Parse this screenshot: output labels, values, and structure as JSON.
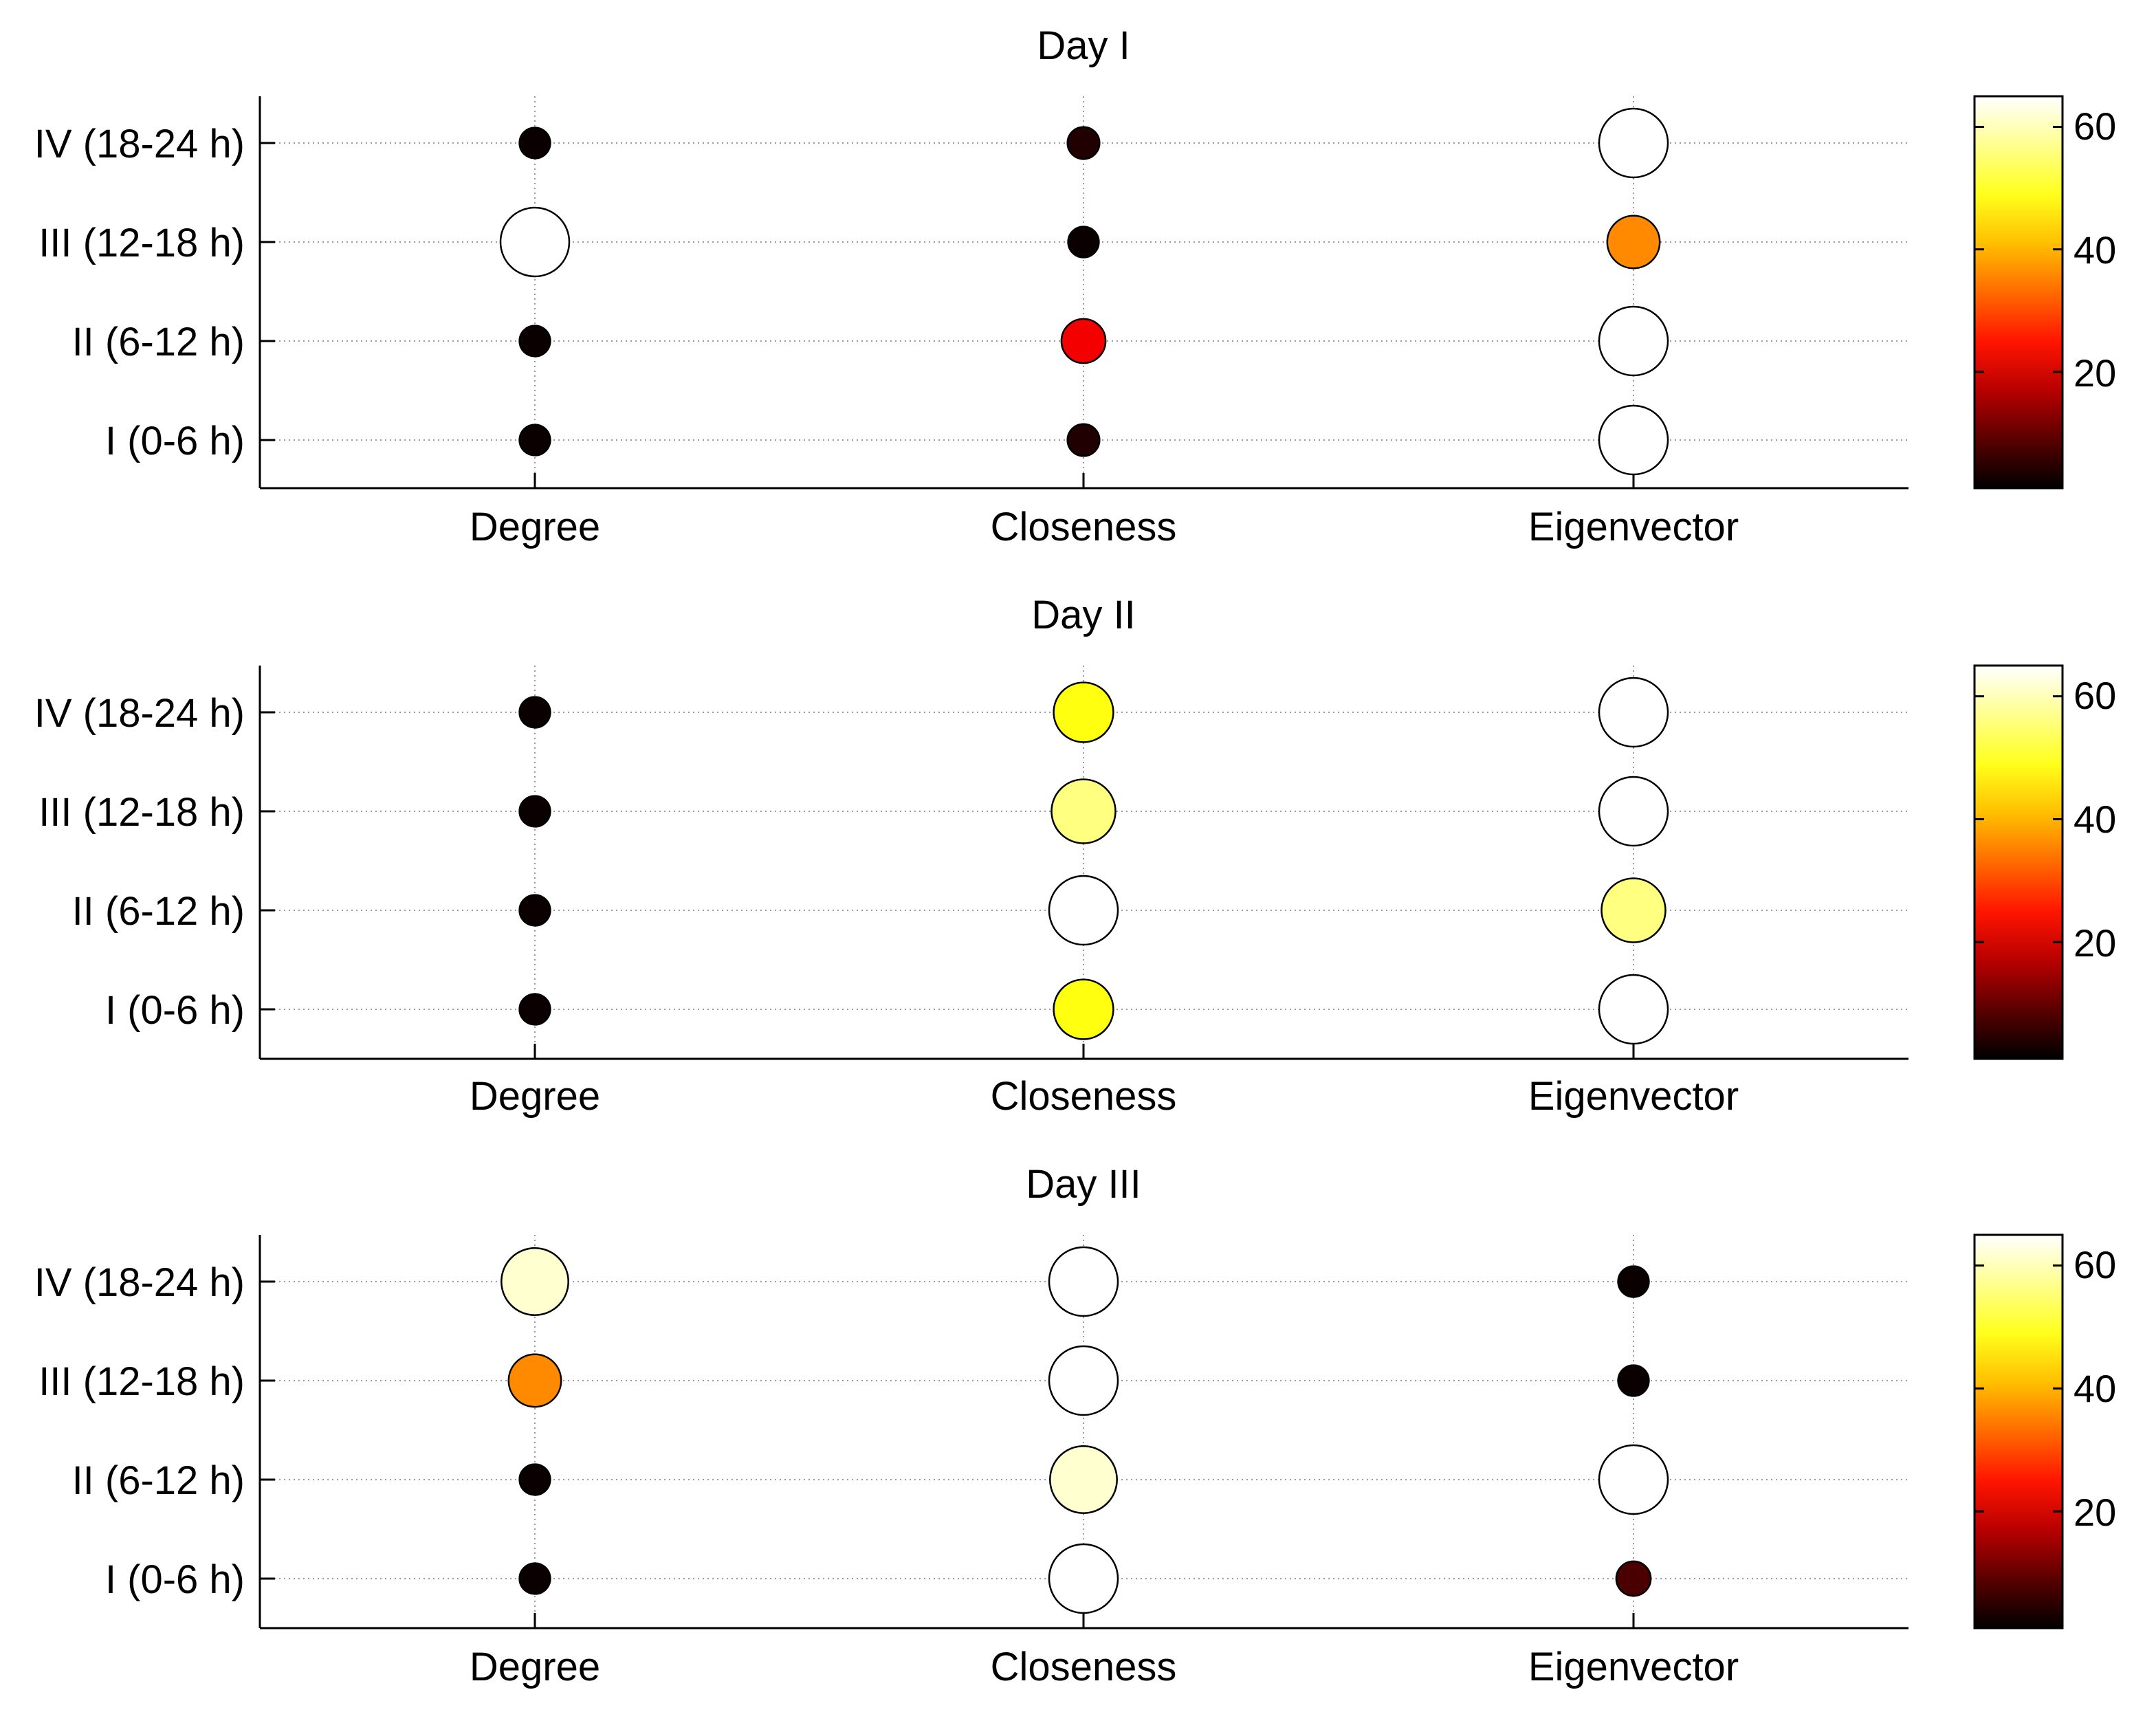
{
  "chart_data": [
    {
      "type": "scatter",
      "title": "Day I",
      "categories": [
        "Degree",
        "Closeness",
        "Eigenvector"
      ],
      "rows": [
        "IV (18-24 h)",
        "III (12-18 h)",
        "II (6-12 h)",
        "I (0-6 h)"
      ],
      "values": [
        [
          2,
          4,
          65
        ],
        [
          65,
          2,
          38
        ],
        [
          2,
          24,
          65
        ],
        [
          2,
          4,
          65
        ]
      ],
      "colorbar": {
        "ticks": [
          "20",
          "40",
          "60"
        ],
        "tick_values": [
          20,
          40,
          60
        ],
        "range": [
          1,
          65
        ]
      }
    },
    {
      "type": "scatter",
      "title": "Day II",
      "categories": [
        "Degree",
        "Closeness",
        "Eigenvector"
      ],
      "rows": [
        "IV (18-24 h)",
        "III (12-18 h)",
        "II (6-12 h)",
        "I (0-6 h)"
      ],
      "values": [
        [
          2,
          50,
          65
        ],
        [
          2,
          57,
          65
        ],
        [
          2,
          65,
          57
        ],
        [
          2,
          50,
          65
        ]
      ],
      "colorbar": {
        "ticks": [
          "20",
          "40",
          "60"
        ],
        "tick_values": [
          20,
          40,
          60
        ],
        "range": [
          1,
          65
        ]
      }
    },
    {
      "type": "scatter",
      "title": "Day III",
      "categories": [
        "Degree",
        "Closeness",
        "Eigenvector"
      ],
      "rows": [
        "IV (18-24 h)",
        "III (12-18 h)",
        "II (6-12 h)",
        "I (0-6 h)"
      ],
      "values": [
        [
          62,
          65,
          2
        ],
        [
          38,
          65,
          2
        ],
        [
          2,
          62,
          65
        ],
        [
          2,
          65,
          8
        ]
      ],
      "colorbar": {
        "ticks": [
          "20",
          "40",
          "60"
        ],
        "tick_values": [
          20,
          40,
          60
        ],
        "range": [
          1,
          65
        ]
      }
    }
  ]
}
